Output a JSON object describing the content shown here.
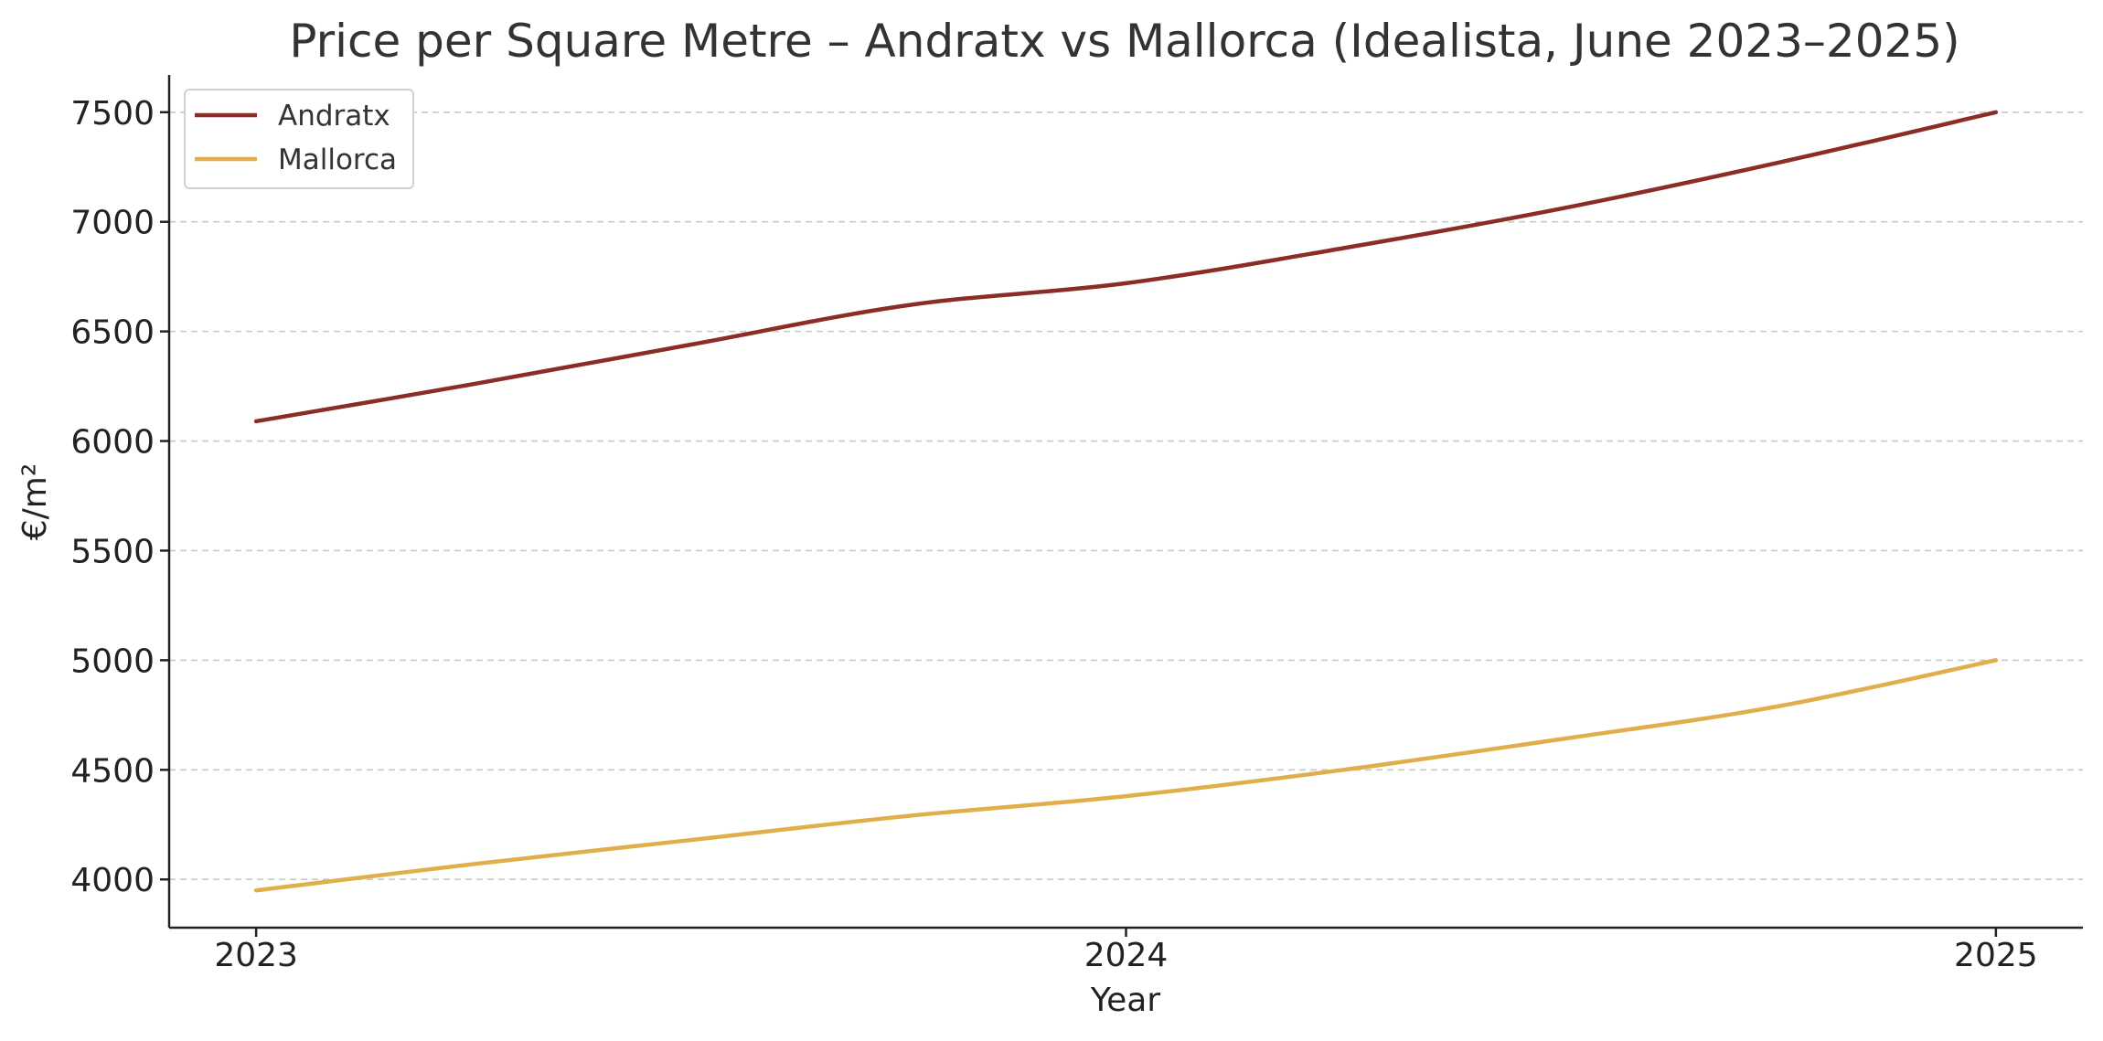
{
  "chart_data": {
    "type": "line",
    "title": "Price per Square Metre – Andratx vs Mallorca (Idealista, June 2023–2025)",
    "xlabel": "Year",
    "ylabel": "€/m²",
    "x_ticks": [
      "2023",
      "2024",
      "2025"
    ],
    "xlim": [
      2022.9,
      2025.1
    ],
    "ylim": [
      3780,
      7670
    ],
    "y_ticks": [
      4000,
      4500,
      5000,
      5500,
      6000,
      6500,
      7000,
      7500
    ],
    "grid": "y-dashed",
    "legend": "top-left",
    "series": [
      {
        "name": "Andratx",
        "color": "#8b2c26",
        "x": [
          2023,
          2023.25,
          2023.5,
          2023.75,
          2024,
          2024.25,
          2024.5,
          2024.75,
          2025
        ],
        "y": [
          6090,
          6260,
          6440,
          6620,
          6720,
          6880,
          7060,
          7270,
          7500
        ]
      },
      {
        "name": "Mallorca",
        "color": "#e0ae4a",
        "x": [
          2023,
          2023.25,
          2023.5,
          2023.75,
          2024,
          2024.25,
          2024.5,
          2024.75,
          2025
        ],
        "y": [
          3950,
          4070,
          4180,
          4290,
          4380,
          4500,
          4640,
          4790,
          5000
        ]
      }
    ]
  }
}
